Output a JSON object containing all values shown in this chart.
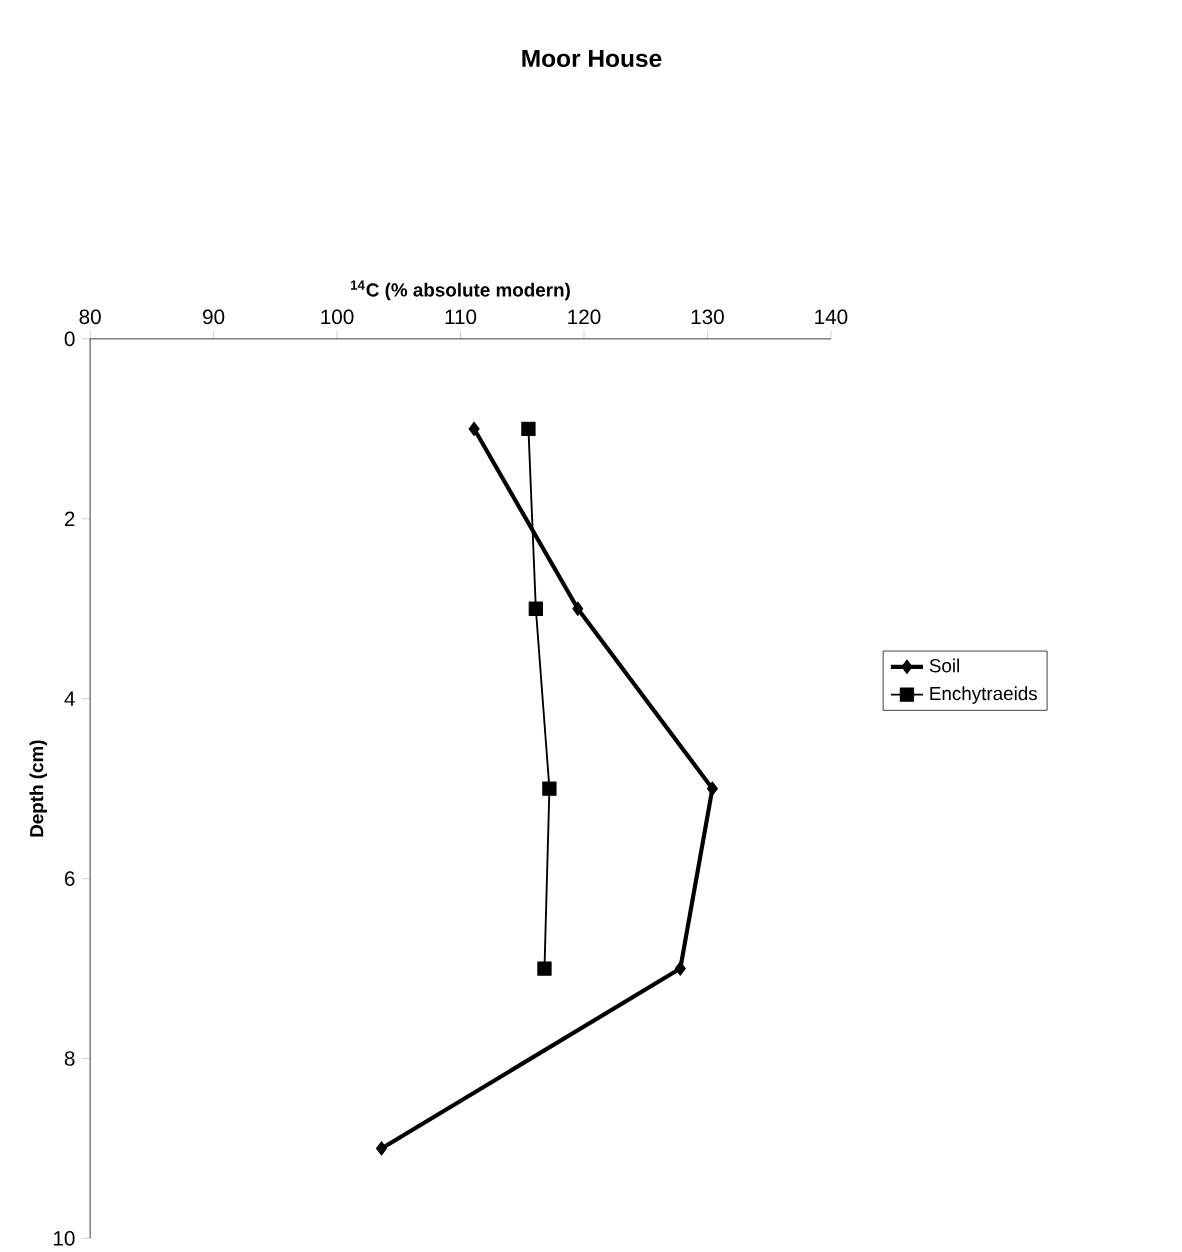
{
  "chart_data": {
    "type": "line",
    "title": "Moor House",
    "xlabel": "$^{14}$C (% absolute modern)",
    "ylabel": "Depth (cm)",
    "xlim": [
      80,
      140
    ],
    "xticks": [
      80,
      90,
      100,
      110,
      120,
      130,
      140
    ],
    "ylim": [
      10,
      0
    ],
    "yticks": [
      0,
      2,
      4,
      6,
      8,
      10
    ],
    "grid": false,
    "legend": "right",
    "series": [
      {
        "name": "Soil",
        "color": "#000000",
        "marker": "diamond",
        "x": [
          111.1,
          119.5,
          130.4,
          127.8,
          103.6
        ],
        "values": [
          1,
          3,
          5,
          7,
          9
        ]
      },
      {
        "name": "Enchytraeids",
        "color": "#000000",
        "marker": "square",
        "x": [
          115.5,
          116.1,
          117.2,
          116.8
        ],
        "values": [
          1,
          3,
          5,
          7
        ]
      }
    ]
  }
}
